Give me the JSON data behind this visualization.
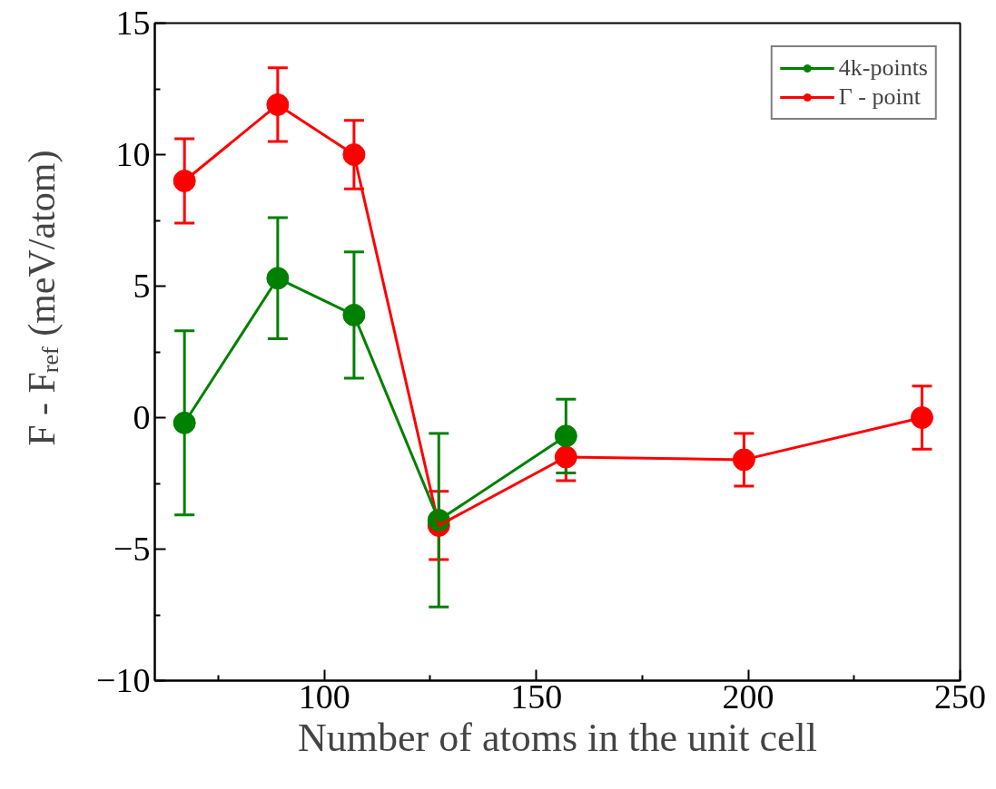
{
  "chart_data": {
    "type": "line",
    "xlabel": "Number of atoms in the unit cell",
    "ylabel": "F - F$_{ref}$ (meV/atom)",
    "xlim": [
      60,
      250
    ],
    "xticks": [
      100,
      150,
      200,
      250
    ],
    "ylim": [
      -10,
      15
    ],
    "yticks": [
      -10,
      -5,
      0,
      5,
      10,
      15
    ],
    "grid": false,
    "legend": "top right",
    "marker": "circle",
    "line_style": "solid",
    "series": [
      {
        "name": "4k-points",
        "color": "#008000",
        "x": [
          67,
          89,
          107,
          127,
          157
        ],
        "values": [
          -0.2,
          5.3,
          3.9,
          -3.9,
          -0.7
        ],
        "errors": [
          3.5,
          2.3,
          2.4,
          3.3,
          1.4
        ]
      },
      {
        "name": "Γ - point",
        "color": "#ff0000",
        "x": [
          67,
          89,
          107,
          127,
          157,
          199,
          241
        ],
        "values": [
          9.0,
          11.9,
          10.0,
          -4.1,
          -1.5,
          -1.6,
          0.0
        ],
        "errors": [
          1.6,
          1.4,
          1.3,
          1.3,
          0.9,
          1.0,
          1.2
        ]
      }
    ]
  }
}
